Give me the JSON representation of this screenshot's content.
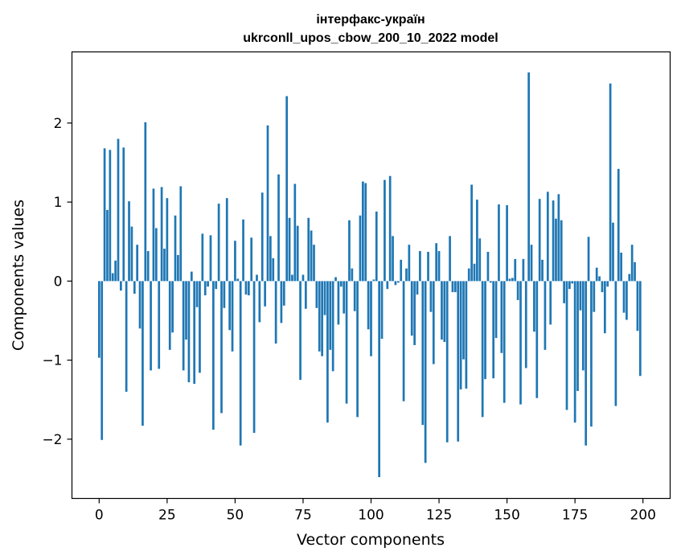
{
  "chart_data": {
    "type": "bar",
    "title": "інтерфакс-україн",
    "subtitle": "ukrconll_upos_cbow_200_10_2022 model",
    "xlabel": "Vector components",
    "ylabel": "Components values",
    "xlim": [
      -10,
      210
    ],
    "ylim": [
      -2.75,
      2.9
    ],
    "xticks": [
      0,
      25,
      50,
      75,
      100,
      125,
      150,
      175,
      200
    ],
    "xtick_labels": [
      "0",
      "25",
      "50",
      "75",
      "100",
      "125",
      "150",
      "175",
      "200"
    ],
    "yticks": [
      -2,
      -1,
      0,
      1,
      2
    ],
    "ytick_labels": [
      "−2",
      "−1",
      "0",
      "1",
      "2"
    ],
    "grid": false,
    "legend": "none",
    "bar_color": "#1f77b4",
    "x": [
      0,
      1,
      2,
      3,
      4,
      5,
      6,
      7,
      8,
      9,
      10,
      11,
      12,
      13,
      14,
      15,
      16,
      17,
      18,
      19,
      20,
      21,
      22,
      23,
      24,
      25,
      26,
      27,
      28,
      29,
      30,
      31,
      32,
      33,
      34,
      35,
      36,
      37,
      38,
      39,
      40,
      41,
      42,
      43,
      44,
      45,
      46,
      47,
      48,
      49,
      50,
      51,
      52,
      53,
      54,
      55,
      56,
      57,
      58,
      59,
      60,
      61,
      62,
      63,
      64,
      65,
      66,
      67,
      68,
      69,
      70,
      71,
      72,
      73,
      74,
      75,
      76,
      77,
      78,
      79,
      80,
      81,
      82,
      83,
      84,
      85,
      86,
      87,
      88,
      89,
      90,
      91,
      92,
      93,
      94,
      95,
      96,
      97,
      98,
      99,
      100,
      101,
      102,
      103,
      104,
      105,
      106,
      107,
      108,
      109,
      110,
      111,
      112,
      113,
      114,
      115,
      116,
      117,
      118,
      119,
      120,
      121,
      122,
      123,
      124,
      125,
      126,
      127,
      128,
      129,
      130,
      131,
      132,
      133,
      134,
      135,
      136,
      137,
      138,
      139,
      140,
      141,
      142,
      143,
      144,
      145,
      146,
      147,
      148,
      149,
      150,
      151,
      152,
      153,
      154,
      155,
      156,
      157,
      158,
      159,
      160,
      161,
      162,
      163,
      164,
      165,
      166,
      167,
      168,
      169,
      170,
      171,
      172,
      173,
      174,
      175,
      176,
      177,
      178,
      179,
      180,
      181,
      182,
      183,
      184,
      185,
      186,
      187,
      188,
      189,
      190,
      191,
      192,
      193,
      194,
      195,
      196,
      197,
      198,
      199
    ],
    "values": [
      -0.97,
      -2.01,
      1.68,
      0.9,
      1.66,
      0.1,
      0.26,
      1.8,
      -0.12,
      1.69,
      -1.4,
      1.01,
      0.69,
      -0.16,
      0.46,
      -0.6,
      -1.83,
      2.01,
      0.38,
      -1.13,
      1.17,
      0.67,
      -1.11,
      1.19,
      0.41,
      1.05,
      -0.87,
      -0.65,
      0.83,
      0.33,
      1.2,
      -1.13,
      -0.74,
      -1.28,
      0.12,
      -1.3,
      -0.33,
      -1.16,
      0.6,
      -0.18,
      -0.07,
      0.58,
      -1.88,
      -0.1,
      0.98,
      -1.67,
      -0.34,
      1.05,
      -0.62,
      -0.89,
      0.51,
      0.03,
      -2.08,
      0.78,
      -0.17,
      -0.18,
      0.55,
      -1.92,
      0.08,
      -0.52,
      1.12,
      -0.32,
      1.97,
      0.57,
      0.29,
      -0.79,
      1.35,
      -0.53,
      -0.31,
      2.34,
      0.8,
      0.08,
      1.23,
      0.7,
      -1.25,
      0.08,
      -0.35,
      0.8,
      0.64,
      0.46,
      -0.34,
      -0.89,
      -0.95,
      -0.43,
      -1.79,
      -0.87,
      -1.14,
      0.05,
      -0.55,
      -0.07,
      -0.41,
      -1.55,
      0.77,
      0.16,
      -0.38,
      -1.72,
      0.83,
      1.26,
      1.24,
      -0.61,
      -0.95,
      0.02,
      0.88,
      -2.48,
      -0.73,
      1.28,
      -0.1,
      1.33,
      0.57,
      -0.05,
      -0.02,
      0.27,
      -1.52,
      0.16,
      0.46,
      -0.69,
      -0.81,
      -0.17,
      0.38,
      -1.82,
      -2.3,
      0.37,
      -0.39,
      -1.05,
      0.48,
      0.38,
      -0.74,
      -0.77,
      -2.04,
      0.57,
      -0.14,
      -0.14,
      -2.03,
      -1.37,
      -0.99,
      -1.36,
      0.16,
      1.22,
      0.22,
      1.03,
      0.54,
      -1.72,
      -1.24,
      0.37,
      -0.02,
      -1.23,
      -0.72,
      0.97,
      -0.91,
      -1.54,
      0.96,
      0.03,
      0.04,
      0.28,
      -0.24,
      -1.56,
      0.28,
      -1.1,
      2.64,
      0.46,
      -0.64,
      -1.48,
      1.04,
      0.27,
      -0.87,
      1.13,
      -0.55,
      1.02,
      0.79,
      1.1,
      0.77,
      -0.28,
      -1.63,
      -0.1,
      -0.03,
      -1.79,
      -1.39,
      -0.37,
      -1.13,
      -2.08,
      0.56,
      -1.84,
      -0.39,
      0.17,
      0.06,
      -0.14,
      -0.66,
      -0.07,
      2.5,
      0.74,
      -1.58,
      1.42,
      0.36,
      -0.4,
      -0.49,
      0.09,
      0.46,
      0.24,
      -0.63,
      -1.2
    ]
  }
}
